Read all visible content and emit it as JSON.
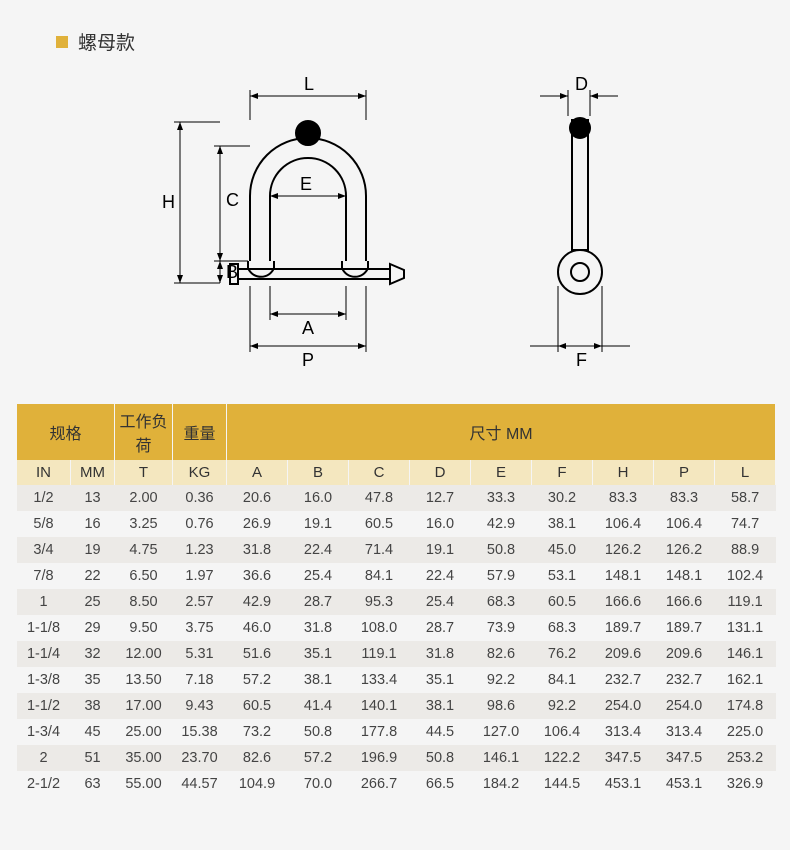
{
  "title": "螺母款",
  "accent_color": "#e0b13a",
  "header_sub_bg": "#f4e7bf",
  "row_alt_bg": "#eceae7",
  "diagram": {
    "labels": {
      "L": "L",
      "D": "D",
      "H": "H",
      "C": "C",
      "E": "E",
      "B": "B",
      "A": "A",
      "P": "P",
      "F": "F"
    }
  },
  "table": {
    "header_groups": [
      {
        "label": "规格",
        "span": 2
      },
      {
        "label": "工作负荷",
        "span": 1
      },
      {
        "label": "重量",
        "span": 1
      },
      {
        "label": "尺寸 MM",
        "span": 9
      }
    ],
    "columns": [
      "IN",
      "MM",
      "T",
      "KG",
      "A",
      "B",
      "C",
      "D",
      "E",
      "F",
      "H",
      "P",
      "L"
    ],
    "rows": [
      [
        "1/2",
        "13",
        "2.00",
        "0.36",
        "20.6",
        "16.0",
        "47.8",
        "12.7",
        "33.3",
        "30.2",
        "83.3",
        "83.3",
        "58.7"
      ],
      [
        "5/8",
        "16",
        "3.25",
        "0.76",
        "26.9",
        "19.1",
        "60.5",
        "16.0",
        "42.9",
        "38.1",
        "106.4",
        "106.4",
        "74.7"
      ],
      [
        "3/4",
        "19",
        "4.75",
        "1.23",
        "31.8",
        "22.4",
        "71.4",
        "19.1",
        "50.8",
        "45.0",
        "126.2",
        "126.2",
        "88.9"
      ],
      [
        "7/8",
        "22",
        "6.50",
        "1.97",
        "36.6",
        "25.4",
        "84.1",
        "22.4",
        "57.9",
        "53.1",
        "148.1",
        "148.1",
        "102.4"
      ],
      [
        "1",
        "25",
        "8.50",
        "2.57",
        "42.9",
        "28.7",
        "95.3",
        "25.4",
        "68.3",
        "60.5",
        "166.6",
        "166.6",
        "119.1"
      ],
      [
        "1-1/8",
        "29",
        "9.50",
        "3.75",
        "46.0",
        "31.8",
        "108.0",
        "28.7",
        "73.9",
        "68.3",
        "189.7",
        "189.7",
        "131.1"
      ],
      [
        "1-1/4",
        "32",
        "12.00",
        "5.31",
        "51.6",
        "35.1",
        "119.1",
        "31.8",
        "82.6",
        "76.2",
        "209.6",
        "209.6",
        "146.1"
      ],
      [
        "1-3/8",
        "35",
        "13.50",
        "7.18",
        "57.2",
        "38.1",
        "133.4",
        "35.1",
        "92.2",
        "84.1",
        "232.7",
        "232.7",
        "162.1"
      ],
      [
        "1-1/2",
        "38",
        "17.00",
        "9.43",
        "60.5",
        "41.4",
        "140.1",
        "38.1",
        "98.6",
        "92.2",
        "254.0",
        "254.0",
        "174.8"
      ],
      [
        "1-3/4",
        "45",
        "25.00",
        "15.38",
        "73.2",
        "50.8",
        "177.8",
        "44.5",
        "127.0",
        "106.4",
        "313.4",
        "313.4",
        "225.0"
      ],
      [
        "2",
        "51",
        "35.00",
        "23.70",
        "82.6",
        "57.2",
        "196.9",
        "50.8",
        "146.1",
        "122.2",
        "347.5",
        "347.5",
        "253.2"
      ],
      [
        "2-1/2",
        "63",
        "55.00",
        "44.57",
        "104.9",
        "70.0",
        "266.7",
        "66.5",
        "184.2",
        "144.5",
        "453.1",
        "453.1",
        "326.9"
      ]
    ]
  }
}
